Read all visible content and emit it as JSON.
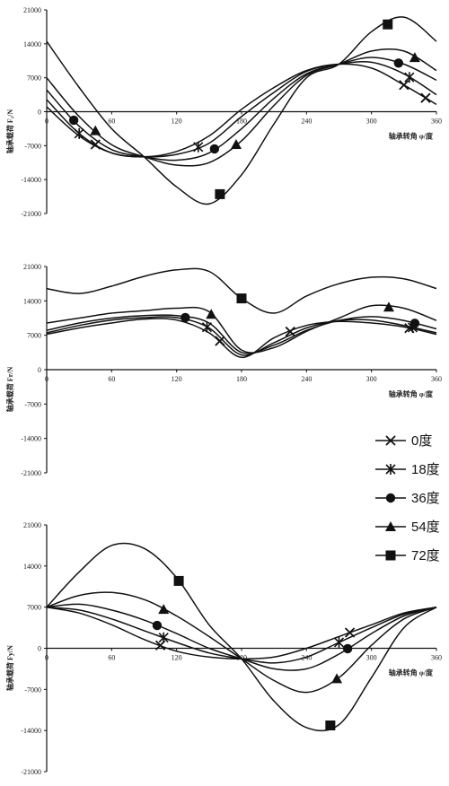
{
  "chart_data": [
    {
      "type": "line",
      "title": "",
      "xlabel": "轴承转角 φ/度",
      "ylabel": "轴承载荷 F₁/N",
      "xlim": [
        0,
        360
      ],
      "ylim": [
        -21000,
        21000
      ],
      "xticks": [
        0,
        60,
        120,
        180,
        240,
        300,
        360
      ],
      "yticks": [
        -21000,
        -14000,
        -7000,
        0,
        7000,
        14000,
        21000
      ],
      "x": [
        0,
        30,
        60,
        90,
        120,
        150,
        180,
        210,
        240,
        270,
        300,
        330,
        360
      ],
      "series": [
        {
          "name": "0度",
          "marker": "x",
          "values": [
            1000,
            -5000,
            -8500,
            -9300,
            -8200,
            -5000,
            500,
            5000,
            8500,
            9800,
            9000,
            5500,
            1500
          ]
        },
        {
          "name": "18度",
          "marker": "asterisk",
          "values": [
            2500,
            -4500,
            -8500,
            -9300,
            -8800,
            -6500,
            -1000,
            4000,
            8300,
            9800,
            10200,
            7800,
            3500
          ]
        },
        {
          "name": "36度",
          "marker": "circle",
          "values": [
            4500,
            -3000,
            -7800,
            -9300,
            -10000,
            -8500,
            -3500,
            2800,
            7800,
            9800,
            11200,
            9800,
            6500
          ]
        },
        {
          "name": "54度",
          "marker": "triangle",
          "values": [
            7000,
            -1000,
            -6800,
            -9300,
            -11000,
            -10500,
            -6000,
            1300,
            7500,
            9800,
            12500,
            12500,
            8500
          ]
        },
        {
          "name": "72度",
          "marker": "square",
          "values": [
            14500,
            5000,
            -3500,
            -9300,
            -15500,
            -19000,
            -13000,
            -2500,
            7000,
            9800,
            16500,
            19500,
            14500
          ]
        }
      ],
      "marker_x": {
        "0度": [
          45,
          330,
          350
        ],
        "18度": [
          30,
          140,
          335
        ],
        "36度": [
          25,
          155,
          325
        ],
        "54度": [
          45,
          175,
          340
        ],
        "72度": [
          160,
          315
        ]
      }
    },
    {
      "type": "line",
      "title": "",
      "xlabel": "轴承转角 φ/度",
      "ylabel": "轴承载荷 Fr/N",
      "xlim": [
        0,
        360
      ],
      "ylim": [
        -21000,
        21000
      ],
      "xticks": [
        0,
        60,
        120,
        180,
        240,
        300,
        360
      ],
      "yticks": [
        -21000,
        -14000,
        -7000,
        0,
        7000,
        14000,
        21000
      ],
      "x": [
        0,
        30,
        60,
        90,
        120,
        150,
        180,
        210,
        240,
        270,
        300,
        330,
        360
      ],
      "series": [
        {
          "name": "0度",
          "marker": "x",
          "values": [
            7200,
            8500,
            9500,
            10300,
            10100,
            7500,
            2500,
            6500,
            9000,
            9800,
            9500,
            8700,
            7200
          ]
        },
        {
          "name": "18度",
          "marker": "asterisk",
          "values": [
            7500,
            9000,
            10100,
            10600,
            10600,
            8500,
            3000,
            5500,
            8500,
            10000,
            10100,
            9000,
            7500
          ]
        },
        {
          "name": "36度",
          "marker": "circle",
          "values": [
            8000,
            9500,
            10500,
            11000,
            11000,
            9500,
            3500,
            5000,
            8000,
            10000,
            10800,
            10000,
            8300
          ]
        },
        {
          "name": "54度",
          "marker": "triangle",
          "values": [
            9500,
            10500,
            11500,
            12000,
            12500,
            11800,
            4000,
            4500,
            7800,
            10500,
            13000,
            12500,
            10000
          ]
        },
        {
          "name": "72度",
          "marker": "square",
          "values": [
            16500,
            15500,
            17000,
            19000,
            20300,
            20000,
            14500,
            11500,
            15000,
            17500,
            18800,
            18500,
            16500
          ]
        }
      ],
      "marker_x": {
        "0度": [
          160,
          225,
          335
        ],
        "18度": [
          148,
          338
        ],
        "36度": [
          128,
          340
        ],
        "54度": [
          152,
          316
        ],
        "72度": [
          180
        ]
      }
    },
    {
      "type": "line",
      "title": "",
      "xlabel": "轴承转角 φ/度",
      "ylabel": "轴承载荷 Fy/N",
      "xlim": [
        0,
        360
      ],
      "ylim": [
        -21000,
        21000
      ],
      "xticks": [
        0,
        60,
        120,
        180,
        240,
        300,
        360
      ],
      "yticks": [
        -21000,
        -14000,
        -7000,
        0,
        7000,
        14000,
        21000
      ],
      "x": [
        0,
        30,
        60,
        90,
        120,
        150,
        180,
        210,
        240,
        270,
        300,
        330,
        360
      ],
      "series": [
        {
          "name": "0度",
          "marker": "x",
          "values": [
            7000,
            6000,
            4000,
            1500,
            -500,
            -1500,
            -1800,
            -1500,
            0,
            2000,
            4000,
            6000,
            7000
          ]
        },
        {
          "name": "18度",
          "marker": "asterisk",
          "values": [
            7000,
            6500,
            5000,
            3000,
            1000,
            -800,
            -1800,
            -2500,
            -1500,
            1000,
            3500,
            5800,
            7000
          ]
        },
        {
          "name": "36度",
          "marker": "circle",
          "values": [
            7000,
            7500,
            6500,
            4800,
            2500,
            0,
            -1800,
            -3500,
            -3500,
            -1000,
            2500,
            5500,
            7000
          ]
        },
        {
          "name": "54度",
          "marker": "triangle",
          "values": [
            7000,
            9000,
            9500,
            8300,
            5500,
            2000,
            -1800,
            -5500,
            -7500,
            -5000,
            500,
            5000,
            7000
          ]
        },
        {
          "name": "72度",
          "marker": "square",
          "values": [
            7000,
            13000,
            17500,
            17000,
            12000,
            4000,
            -1800,
            -9000,
            -13500,
            -13000,
            -5000,
            3500,
            7000
          ]
        }
      ],
      "marker_x": {
        "0度": [
          105,
          280
        ],
        "18度": [
          108,
          270
        ],
        "36度": [
          102,
          278
        ],
        "54度": [
          108,
          268
        ],
        "72度": [
          122,
          262
        ]
      }
    }
  ],
  "legend": {
    "items": [
      {
        "label": "0度",
        "marker": "x"
      },
      {
        "label": "18度",
        "marker": "asterisk"
      },
      {
        "label": "36度",
        "marker": "circle"
      },
      {
        "label": "54度",
        "marker": "triangle"
      },
      {
        "label": "72度",
        "marker": "square"
      }
    ]
  }
}
